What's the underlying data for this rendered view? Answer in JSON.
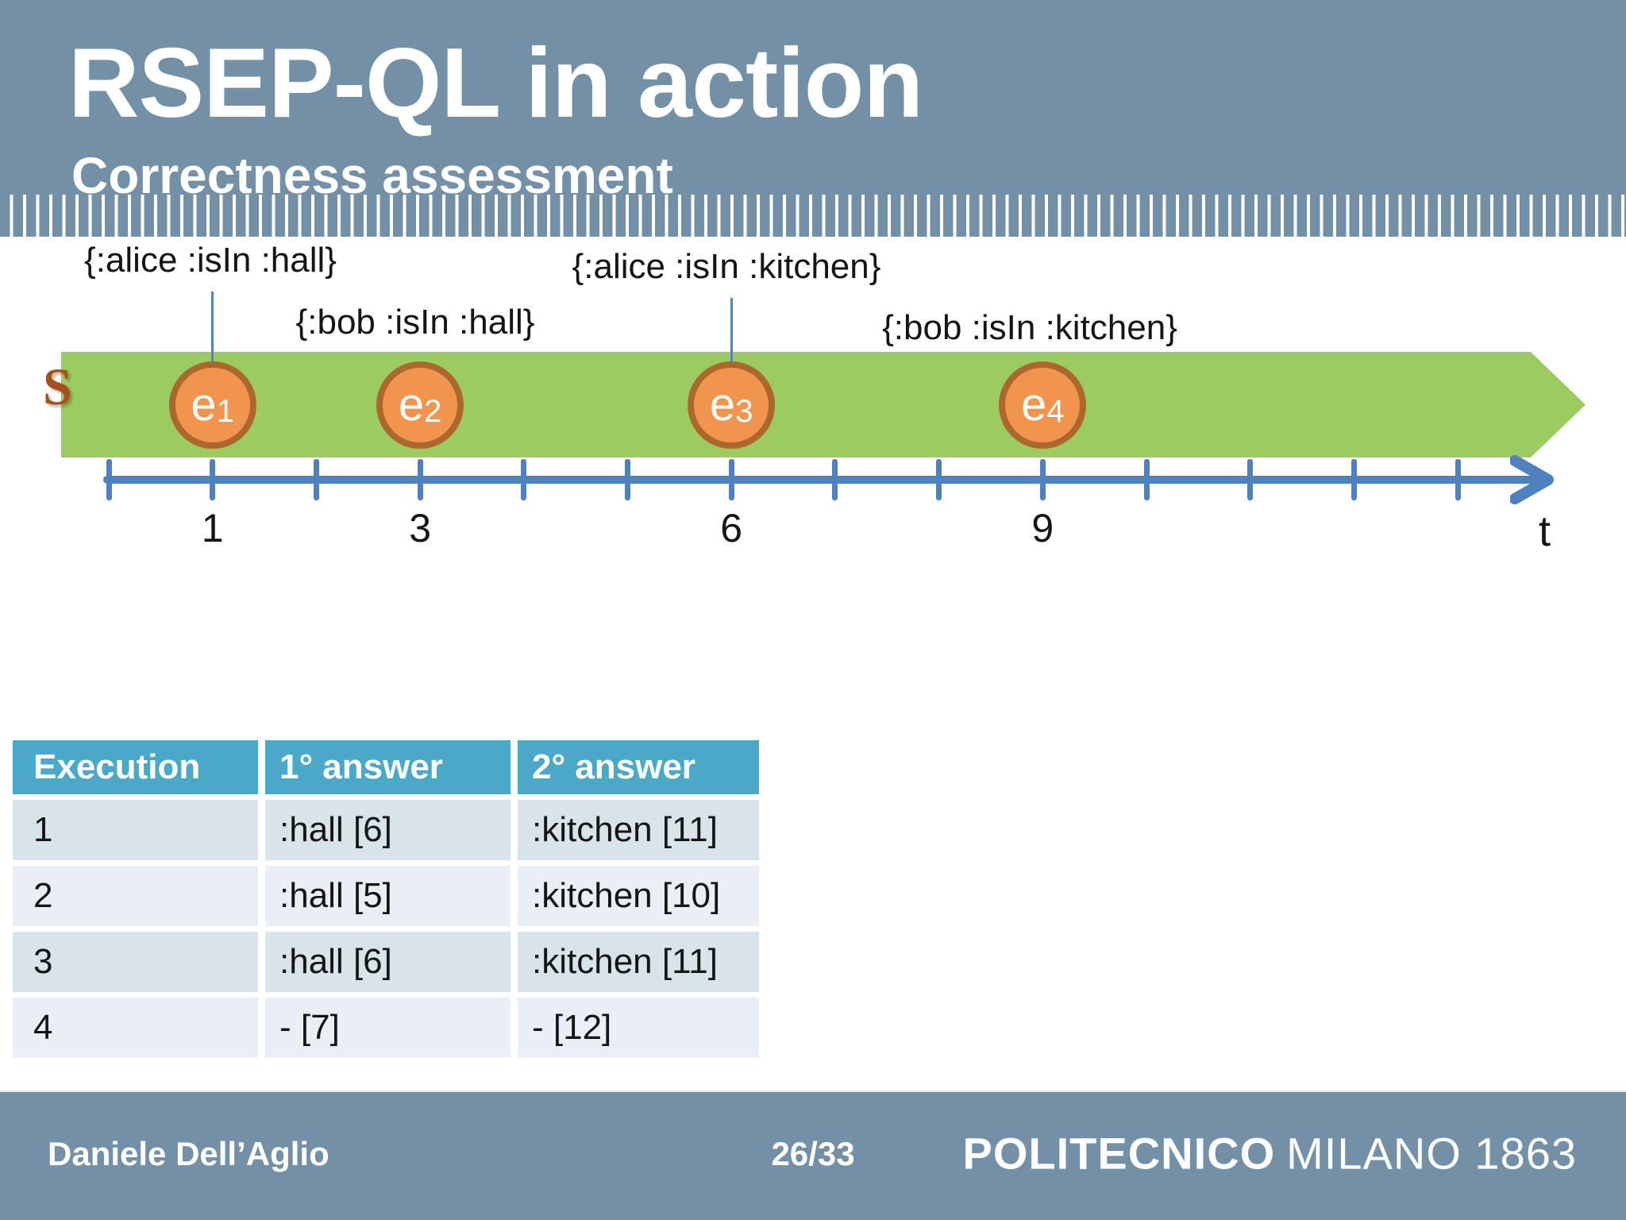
{
  "slide": {
    "title": "RSEP-QL in action",
    "subtitle": "Correctness assessment"
  },
  "timeline": {
    "stream_label": "S",
    "axis_label": "t",
    "annotations": [
      {
        "text": "{:alice :isIn :hall}",
        "tick": 1,
        "connector": true
      },
      {
        "text": "{:bob :isIn :hall}",
        "tick": 3,
        "connector": false
      },
      {
        "text": "{:alice :isIn :kitchen}",
        "tick": 6,
        "connector": true
      },
      {
        "text": "{:bob :isIn :kitchen}",
        "tick": 9,
        "connector": false
      }
    ],
    "events": [
      {
        "base": "e",
        "sub": "1",
        "tick": 1
      },
      {
        "base": "e",
        "sub": "2",
        "tick": 3
      },
      {
        "base": "e",
        "sub": "3",
        "tick": 6
      },
      {
        "base": "e",
        "sub": "4",
        "tick": 9
      }
    ],
    "tick_labels": [
      {
        "tick": 1,
        "text": "1"
      },
      {
        "tick": 3,
        "text": "3"
      },
      {
        "tick": 6,
        "text": "6"
      },
      {
        "tick": 9,
        "text": "9"
      }
    ]
  },
  "table": {
    "headers": [
      "Execution",
      "1° answer",
      "2° answer"
    ],
    "rows": [
      [
        "1",
        ":hall [6]",
        ":kitchen [11]"
      ],
      [
        "2",
        ":hall [5]",
        ":kitchen [10]"
      ],
      [
        "3",
        ":hall [6]",
        ":kitchen [11]"
      ],
      [
        "4",
        "- [7]",
        "- [12]"
      ]
    ]
  },
  "footer": {
    "author": "Daniele Dell’Aglio",
    "page": "26/33",
    "logo_bold": "POLITECNICO",
    "logo_regular": "MILANO 1863"
  },
  "colors": {
    "header_bg": "#7390A6",
    "stream_green": "#9CCB62",
    "event_fill": "#F0944E",
    "event_border": "#AC682C",
    "axis_blue": "#4E81BD",
    "connector_blue": "#5B84AD",
    "table_header_bg": "#4AA9C6",
    "table_row_dark": "#D8E4EA",
    "table_row_light": "#E9EFF4",
    "stream_label_color": "#A4511E"
  }
}
